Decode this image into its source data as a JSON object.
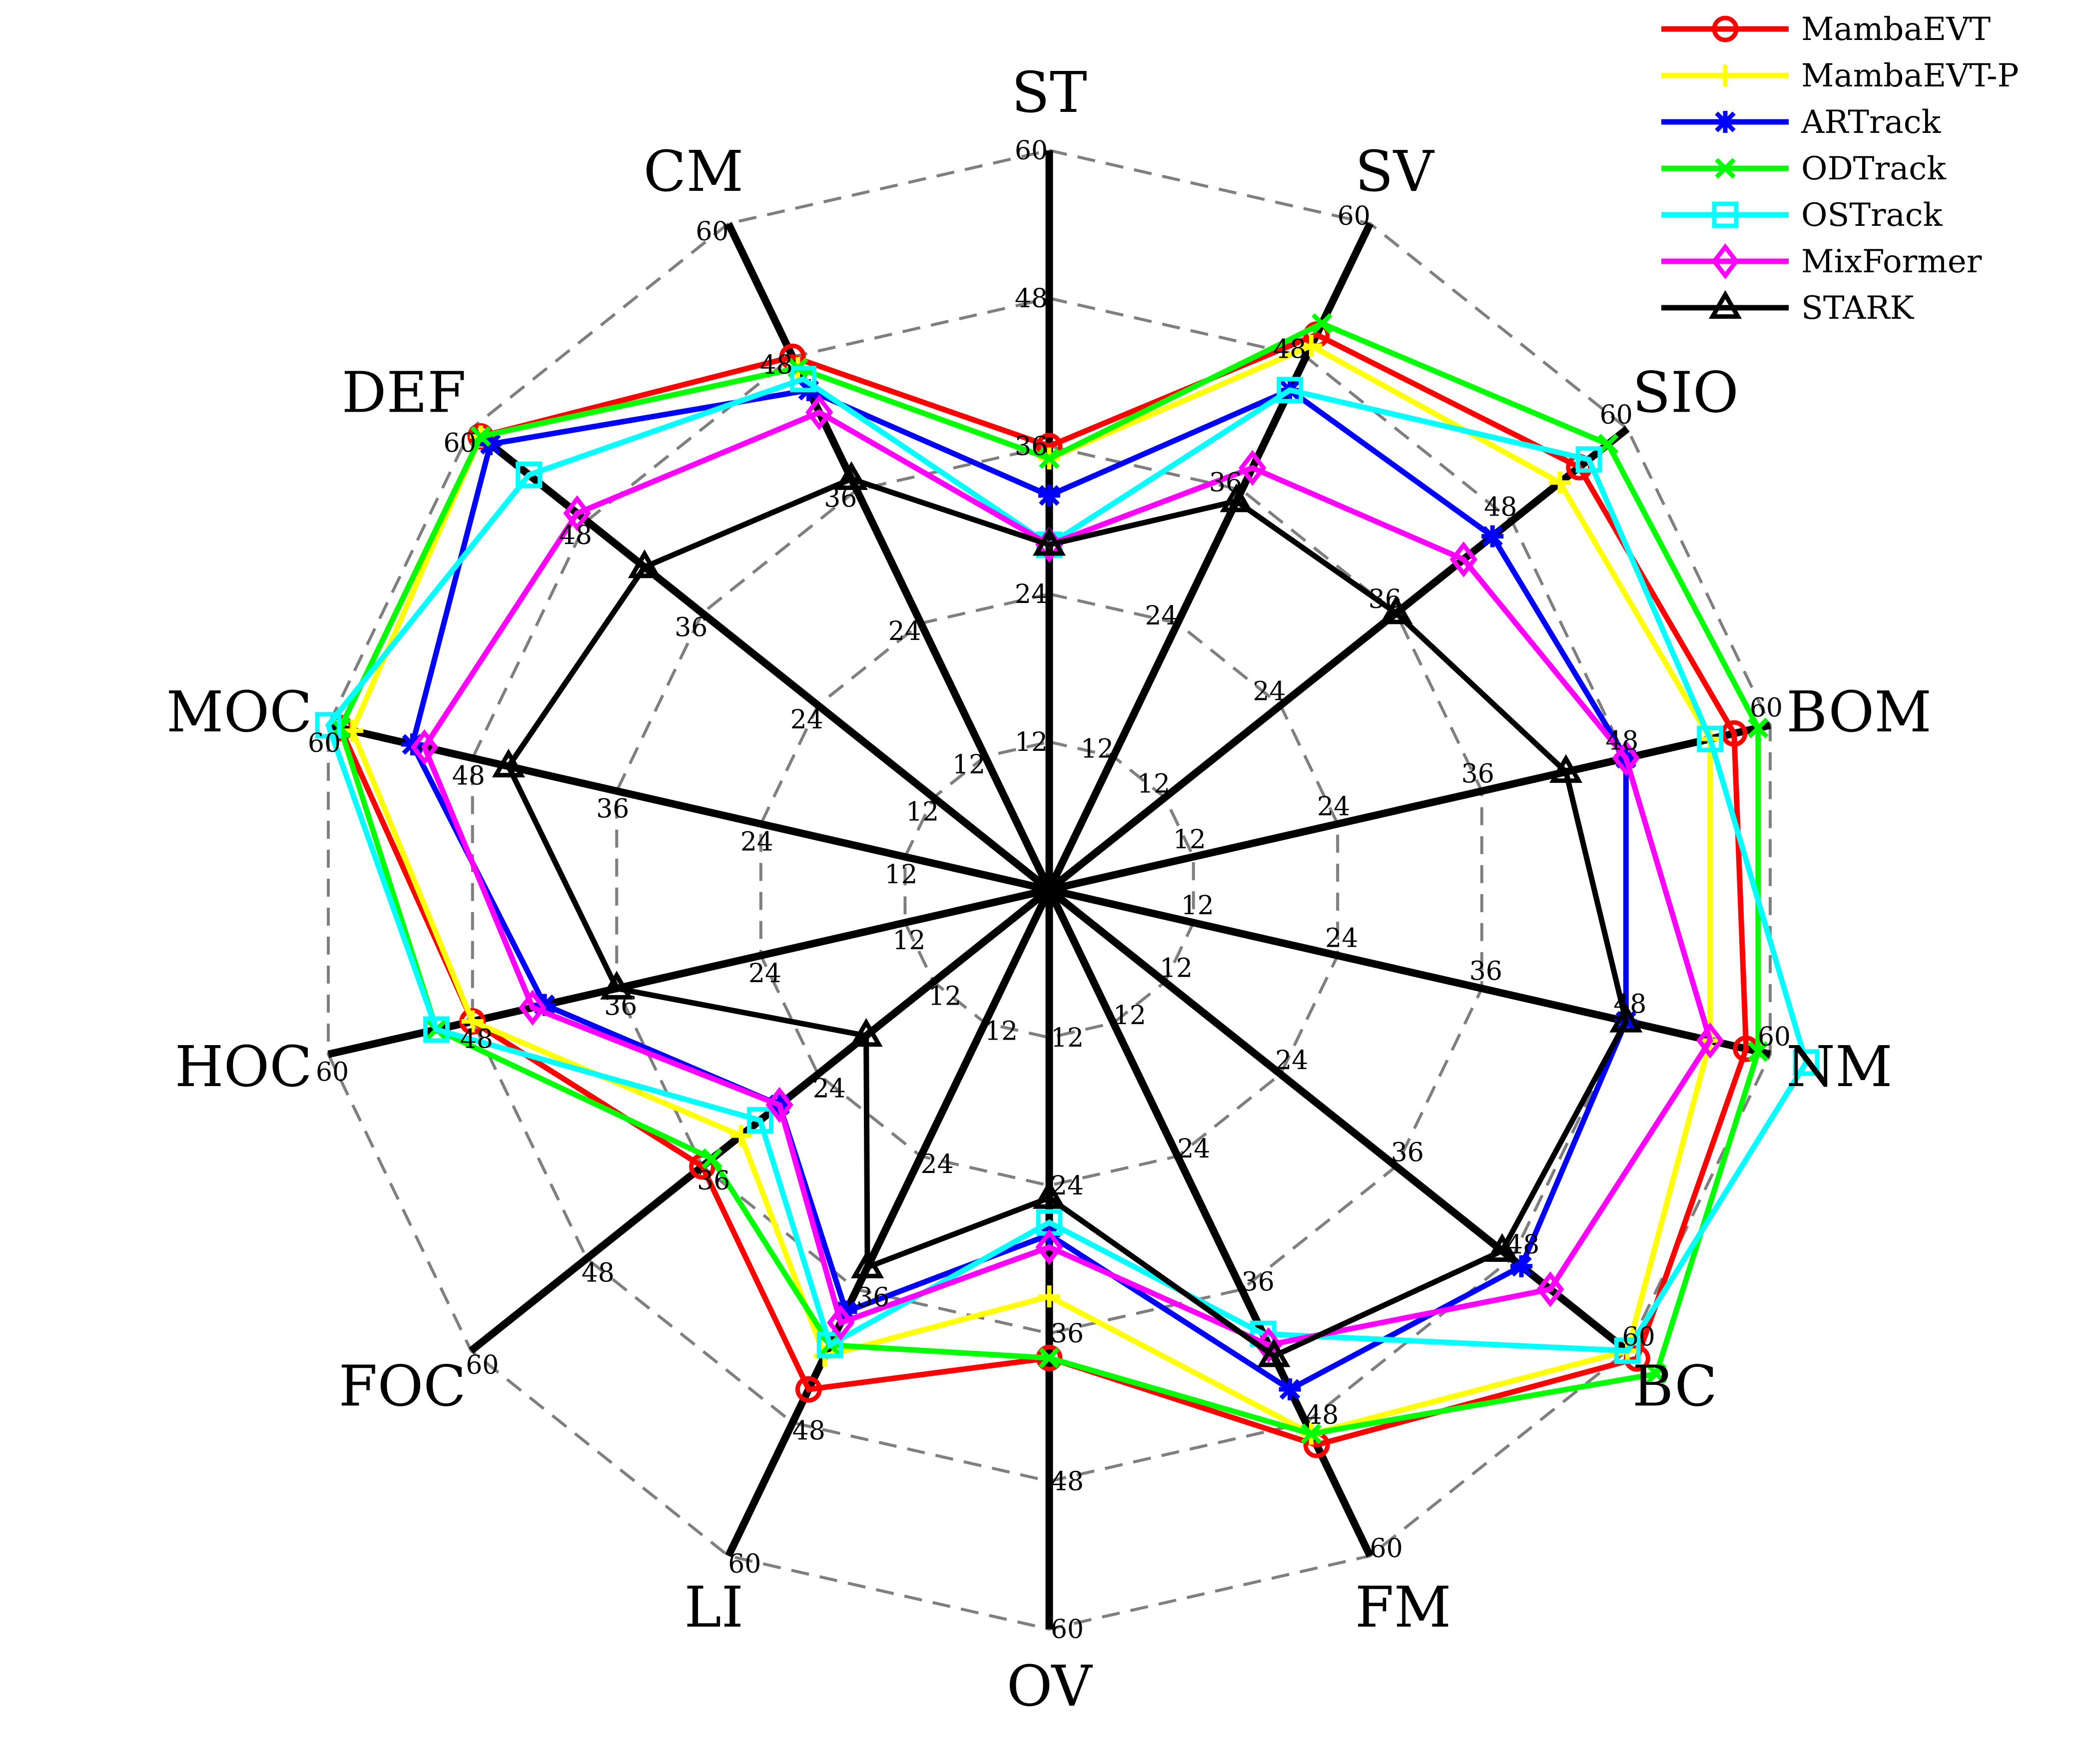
{
  "chart_data": {
    "type": "radar",
    "axes": [
      "ST",
      "SV",
      "SIO",
      "BOM",
      "NM",
      "BC",
      "FM",
      "OV",
      "LI",
      "FOC",
      "HOC",
      "MOC",
      "DEF",
      "CM"
    ],
    "ticks": [
      12,
      24,
      36,
      48,
      60
    ],
    "tick_labels": [
      "12",
      "24",
      "36",
      "48",
      "60"
    ],
    "range": [
      0,
      60
    ],
    "grid": true,
    "legend_position": "top-right",
    "series": [
      {
        "name": "MambaEVT",
        "color": "#ff0000",
        "marker": "circle",
        "values": [
          36,
          50,
          55,
          57,
          58,
          61,
          50,
          38,
          45,
          36,
          48,
          59,
          59,
          48
        ]
      },
      {
        "name": "MambaEVT-P",
        "color": "#ffff00",
        "marker": "plus",
        "values": [
          35,
          49,
          53,
          55,
          55,
          60,
          49,
          33,
          42,
          32,
          48,
          58,
          59,
          47
        ]
      },
      {
        "name": "ARTrack",
        "color": "#0000ff",
        "marker": "asterisk",
        "values": [
          32,
          45,
          46,
          48,
          48,
          49,
          45,
          28,
          38,
          28,
          42,
          53,
          58,
          45
        ]
      },
      {
        "name": "ODTrack",
        "color": "#00ff00",
        "marker": "x",
        "values": [
          35,
          51,
          58,
          59,
          59,
          63,
          49,
          38,
          41,
          35,
          51,
          59,
          59,
          47
        ]
      },
      {
        "name": "OSTrack",
        "color": "#00ffff",
        "marker": "square",
        "values": [
          28,
          45,
          56,
          55,
          63,
          60,
          40,
          27,
          41,
          30,
          51,
          60,
          54,
          46
        ]
      },
      {
        "name": "MixFormer",
        "color": "#ff00ff",
        "marker": "diamond",
        "values": [
          28,
          38,
          43,
          48,
          55,
          52,
          41,
          29,
          39,
          28,
          43,
          52,
          49,
          43
        ]
      },
      {
        "name": "STARK",
        "color": "#000000",
        "marker": "triangle",
        "values": [
          28,
          35,
          36,
          43,
          48,
          47,
          42,
          25,
          34,
          19,
          36,
          45,
          42,
          37
        ]
      }
    ]
  }
}
